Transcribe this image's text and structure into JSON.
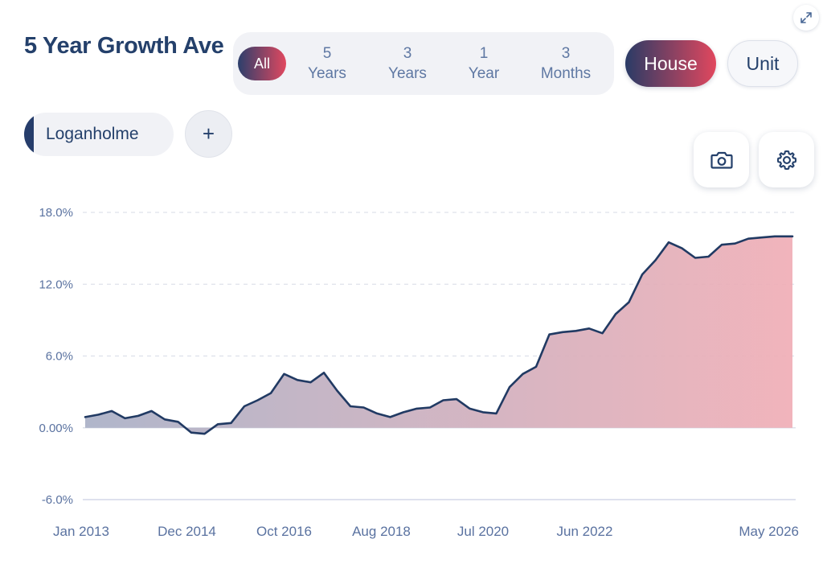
{
  "header": {
    "title": "5 Year Growth Ave"
  },
  "range_options": [
    {
      "label": "All",
      "active": true
    },
    {
      "label": "5\nYears",
      "active": false
    },
    {
      "label": "3\nYears",
      "active": false
    },
    {
      "label": "1\nYear",
      "active": false
    },
    {
      "label": "3\nMonths",
      "active": false
    }
  ],
  "property_types": {
    "house": "House",
    "unit": "Unit",
    "selected": "House"
  },
  "suburb": {
    "name": "Loganholme",
    "add_label": "+"
  },
  "icons": {
    "expand": "expand-icon",
    "camera": "camera-icon",
    "settings": "gear-icon"
  },
  "colors": {
    "line": "#213a63",
    "fill_start": "#a9b0c6",
    "fill_end": "#f0aeb6",
    "accent_start": "#2c3f6c",
    "accent_end": "#e1485f"
  },
  "chart_data": {
    "type": "area",
    "title": "5 Year Growth Ave",
    "xlabel": "",
    "ylabel": "",
    "ylim": [
      -6,
      18
    ],
    "yticks": [
      18,
      12,
      6,
      0,
      -6
    ],
    "ytick_labels": [
      "18.0%",
      "12.0%",
      "6.0%",
      "0.00%",
      "-6.0%"
    ],
    "xlim": [
      "2013-01",
      "2026-05"
    ],
    "xticks": [
      {
        "x": "2013-01",
        "label": "Jan 2013"
      },
      {
        "x": "2014-12",
        "label": "Dec 2014"
      },
      {
        "x": "2016-10",
        "label": "Oct 2016"
      },
      {
        "x": "2018-08",
        "label": "Aug 2018"
      },
      {
        "x": "2020-07",
        "label": "Jul 2020"
      },
      {
        "x": "2022-06",
        "label": "Jun 2022"
      },
      {
        "x": "2026-05",
        "label": "May 2026"
      }
    ],
    "grid": true,
    "series": [
      {
        "x": [
          "2013-01",
          "2013-04",
          "2013-07",
          "2013-10",
          "2014-01",
          "2014-04",
          "2014-07",
          "2014-10",
          "2015-01",
          "2015-04",
          "2015-07",
          "2015-10",
          "2016-01",
          "2016-04",
          "2016-07",
          "2016-10",
          "2017-01",
          "2017-04",
          "2017-07",
          "2017-10",
          "2018-01",
          "2018-04",
          "2018-07",
          "2018-10",
          "2019-01",
          "2019-04",
          "2019-07",
          "2019-10",
          "2020-01",
          "2020-04",
          "2020-07",
          "2020-10",
          "2021-01",
          "2021-04",
          "2021-07",
          "2021-10",
          "2022-01",
          "2022-04",
          "2022-07",
          "2022-10",
          "2023-01",
          "2023-04",
          "2023-07",
          "2023-10",
          "2024-01",
          "2024-04",
          "2024-07",
          "2024-10",
          "2025-01",
          "2025-04",
          "2025-07",
          "2025-10",
          "2026-01",
          "2026-05"
        ],
        "values": [
          0.9,
          1.1,
          1.4,
          0.8,
          1.0,
          1.4,
          0.7,
          0.5,
          -0.4,
          -0.5,
          0.3,
          0.4,
          1.8,
          2.3,
          2.9,
          4.5,
          4.0,
          3.8,
          4.6,
          3.1,
          1.8,
          1.7,
          1.2,
          0.9,
          1.3,
          1.6,
          1.7,
          2.3,
          2.4,
          1.6,
          1.3,
          1.2,
          3.4,
          4.5,
          5.1,
          7.8,
          8.0,
          8.1,
          8.3,
          7.9,
          9.5,
          10.5,
          12.8,
          14.0,
          15.5,
          15.0,
          14.2,
          14.3,
          15.3,
          15.4,
          15.8,
          15.9,
          16.0,
          16.0
        ],
        "color": "#213a63"
      }
    ]
  }
}
